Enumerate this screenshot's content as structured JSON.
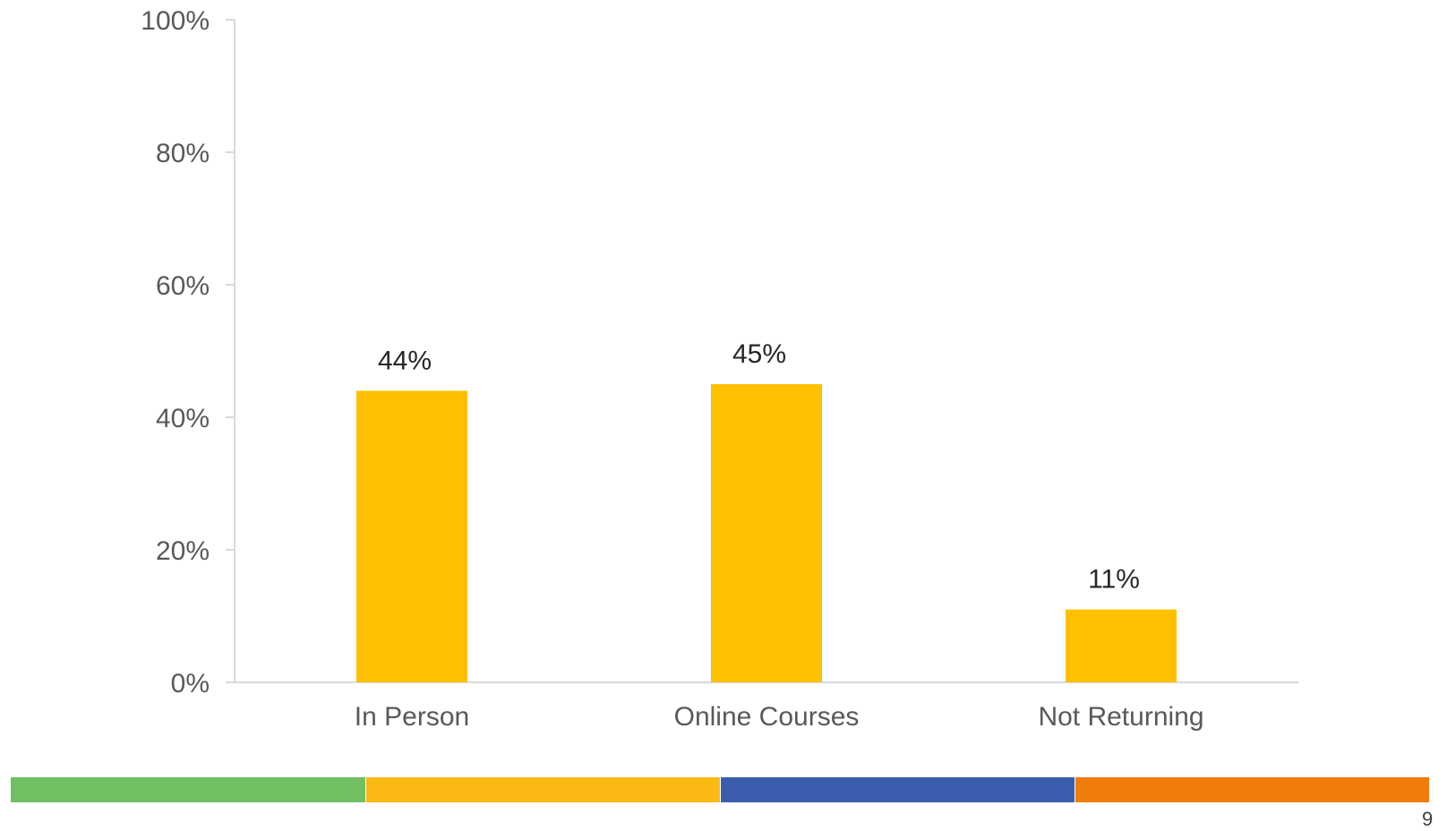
{
  "chart_data": {
    "type": "bar",
    "title": "",
    "xlabel": "",
    "ylabel": "",
    "categories": [
      "In Person",
      "Online Courses",
      "Not Returning"
    ],
    "values": [
      44,
      45,
      11
    ],
    "data_labels": [
      "44%",
      "45%",
      "11%"
    ],
    "ylim": [
      0,
      100
    ],
    "yticks": [
      0,
      20,
      40,
      60,
      80,
      100
    ],
    "ytick_labels": [
      "0%",
      "20%",
      "40%",
      "60%",
      "80%",
      "100%"
    ],
    "grid": false,
    "legend": "none",
    "bar_color": "#FFC000"
  },
  "footer": {
    "page_number": "9",
    "stripe_colors": [
      "#70BF63",
      "#FBB914",
      "#3A5DAE",
      "#F07C0A"
    ]
  }
}
